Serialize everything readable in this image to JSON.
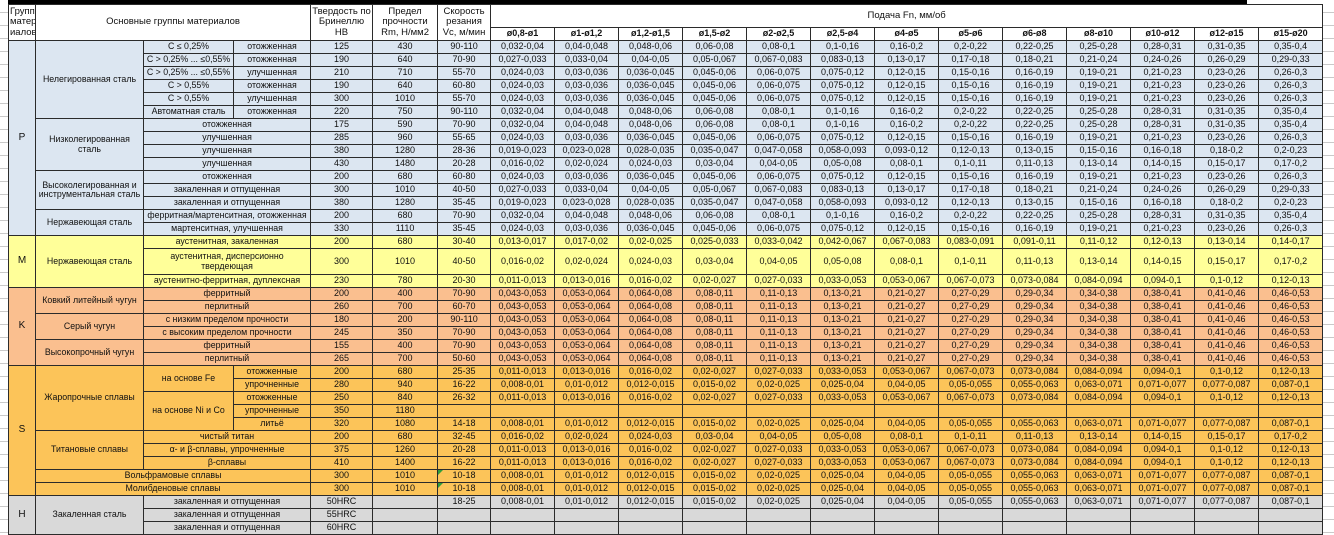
{
  "table": {
    "corner_header": "Группа матер иалов",
    "materials_header": "Основные группы материалов",
    "hardness_header": "Твердость по Бринеллю HB",
    "strength_header": "Предел прочности Rm, Н/мм2",
    "speed_header": "Скорость резания Vc, м/мин",
    "feed_header": "Подача Fn, мм/об",
    "diameter_columns": [
      "ø0,8-ø1",
      "ø1-ø1,2",
      "ø1,2-ø1,5",
      "ø1,5-ø2",
      "ø2-ø2,5",
      "ø2,5-ø4",
      "ø4-ø5",
      "ø5-ø6",
      "ø6-ø8",
      "ø8-ø10",
      "ø10-ø12",
      "ø12-ø15",
      "ø15-ø20"
    ],
    "group_colors": {
      "p": "#dce6f1",
      "m": "#ffff99",
      "k": "#fabf8f",
      "s": "#fcc459",
      "h": "#d9d9d9"
    },
    "error_indicator_color": "#2f9e3c",
    "feed_patterns": {
      "A": [
        "0,032-0,04",
        "0,04-0,048",
        "0,048-0,06",
        "0,06-0,08",
        "0,08-0,1",
        "0,1-0,16",
        "0,16-0,2",
        "0,2-0,22",
        "0,22-0,25",
        "0,25-0,28",
        "0,28-0,31",
        "0,31-0,35",
        "0,35-0,4"
      ],
      "B": [
        "0,027-0,033",
        "0,033-0,04",
        "0,04-0,05",
        "0,05-0,067",
        "0,067-0,083",
        "0,083-0,13",
        "0,13-0,17",
        "0,17-0,18",
        "0,18-0,21",
        "0,21-0,24",
        "0,24-0,26",
        "0,26-0,29",
        "0,29-0,33"
      ],
      "C": [
        "0,024-0,03",
        "0,03-0,036",
        "0,036-0,045",
        "0,045-0,06",
        "0,06-0,075",
        "0,075-0,12",
        "0,12-0,15",
        "0,15-0,16",
        "0,16-0,19",
        "0,19-0,21",
        "0,21-0,23",
        "0,23-0,26",
        "0,26-0,3"
      ],
      "D": [
        "0,019-0,023",
        "0,023-0,028",
        "0,028-0,035",
        "0,035-0,047",
        "0,047-0,058",
        "0,058-0,093",
        "0,093-0,12",
        "0,12-0,13",
        "0,13-0,15",
        "0,15-0,16",
        "0,16-0,18",
        "0,18-0,2",
        "0,2-0,23"
      ],
      "E": [
        "0,016-0,02",
        "0,02-0,024",
        "0,024-0,03",
        "0,03-0,04",
        "0,04-0,05",
        "0,05-0,08",
        "0,08-0,1",
        "0,1-0,11",
        "0,11-0,13",
        "0,13-0,14",
        "0,14-0,15",
        "0,15-0,17",
        "0,17-0,2"
      ],
      "F": [
        "0,013-0,017",
        "0,017-0,02",
        "0,02-0,025",
        "0,025-0,033",
        "0,033-0,042",
        "0,042-0,067",
        "0,067-0,083",
        "0,083-0,091",
        "0,091-0,11",
        "0,11-0,12",
        "0,12-0,13",
        "0,13-0,14",
        "0,14-0,17"
      ],
      "G": [
        "0,011-0,013",
        "0,013-0,016",
        "0,016-0,02",
        "0,02-0,027",
        "0,027-0,033",
        "0,033-0,053",
        "0,053-0,067",
        "0,067-0,073",
        "0,073-0,084",
        "0,084-0,094",
        "0,094-0,1",
        "0,1-0,12",
        "0,12-0,13"
      ],
      "H": [
        "0,043-0,053",
        "0,053-0,064",
        "0,064-0,08",
        "0,08-0,11",
        "0,11-0,13",
        "0,13-0,21",
        "0,21-0,27",
        "0,27-0,29",
        "0,29-0,34",
        "0,34-0,38",
        "0,38-0,41",
        "0,41-0,46",
        "0,46-0,53"
      ],
      "I": [
        "0,008-0,01",
        "0,01-0,012",
        "0,012-0,015",
        "0,015-0,02",
        "0,02-0,025",
        "0,025-0,04",
        "0,04-0,05",
        "0,05-0,055",
        "0,055-0,063",
        "0,063-0,071",
        "0,071-0,077",
        "0,077-0,087",
        "0,087-0,1"
      ]
    },
    "rows": [
      {
        "c": "p",
        "group": {
          "label": "P",
          "rowspan": 15
        },
        "material": {
          "label": "Нелегированная сталь",
          "rowspan": 6
        },
        "sub1": {
          "label": "C ≤ 0,25%"
        },
        "sub2": {
          "label": "отожженная"
        },
        "hb": "125",
        "rm": "430",
        "vc": "90-110",
        "feeds": "A"
      },
      {
        "c": "p",
        "sub1": {
          "label": "C > 0,25% ... ≤0,55%"
        },
        "sub2": {
          "label": "отожженная"
        },
        "hb": "190",
        "rm": "640",
        "vc": "70-90",
        "feeds": "B"
      },
      {
        "c": "p",
        "sub1": {
          "label": "C > 0,25% ... ≤0,55%"
        },
        "sub2": {
          "label": "улучшенная"
        },
        "hb": "210",
        "rm": "710",
        "vc": "55-70",
        "feeds": "C"
      },
      {
        "c": "p",
        "sub1": {
          "label": "C > 0,55%"
        },
        "sub2": {
          "label": "отожженная"
        },
        "hb": "190",
        "rm": "640",
        "vc": "60-80",
        "feeds": "C"
      },
      {
        "c": "p",
        "sub1": {
          "label": "C > 0,55%"
        },
        "sub2": {
          "label": "улучшенная"
        },
        "hb": "300",
        "rm": "1010",
        "vc": "55-70",
        "feeds": "C"
      },
      {
        "c": "p",
        "sub1": {
          "label": "Автоматная сталь"
        },
        "sub2": {
          "label": "отожженная"
        },
        "hb": "220",
        "rm": "750",
        "vc": "90-110",
        "feeds": "A"
      },
      {
        "c": "p",
        "material": {
          "label": "Низколегированная сталь",
          "rowspan": 4
        },
        "sub1": {
          "label": "отожженная",
          "colspan": 2
        },
        "hb": "175",
        "rm": "590",
        "vc": "70-90",
        "feeds": "A"
      },
      {
        "c": "p",
        "sub1": {
          "label": "улучшенная",
          "colspan": 2
        },
        "hb": "285",
        "rm": "960",
        "vc": "55-65",
        "feeds": "C"
      },
      {
        "c": "p",
        "sub1": {
          "label": "улучшенная",
          "colspan": 2
        },
        "hb": "380",
        "rm": "1280",
        "vc": "28-36",
        "feeds": "D"
      },
      {
        "c": "p",
        "sub1": {
          "label": "улучшенная",
          "colspan": 2
        },
        "hb": "430",
        "rm": "1480",
        "vc": "20-28",
        "feeds": "E"
      },
      {
        "c": "p",
        "material": {
          "label": "Высоколегированная и инструментальная сталь",
          "rowspan": 3
        },
        "sub1": {
          "label": "отожженная",
          "colspan": 2
        },
        "hb": "200",
        "rm": "680",
        "vc": "60-80",
        "feeds": "C"
      },
      {
        "c": "p",
        "sub1": {
          "label": "закаленная и отпущенная",
          "colspan": 2
        },
        "hb": "300",
        "rm": "1010",
        "vc": "40-50",
        "feeds": "B"
      },
      {
        "c": "p",
        "sub1": {
          "label": "закаленная и отпущенная",
          "colspan": 2
        },
        "hb": "380",
        "rm": "1280",
        "vc": "35-45",
        "feeds": "D"
      },
      {
        "c": "p",
        "material": {
          "label": "Нержавеющая сталь",
          "rowspan": 2
        },
        "sub1": {
          "label": "ферритная/мартенситная, отожженная",
          "colspan": 2
        },
        "hb": "200",
        "rm": "680",
        "vc": "70-90",
        "feeds": "A"
      },
      {
        "c": "p",
        "sub1": {
          "label": "мартенситная, улучшенная",
          "colspan": 2
        },
        "hb": "330",
        "rm": "1110",
        "vc": "35-45",
        "feeds": "C"
      },
      {
        "c": "m",
        "group": {
          "label": "M",
          "rowspan": 3
        },
        "material": {
          "label": "Нержавеющая сталь",
          "rowspan": 3
        },
        "sub1": {
          "label": "аустенитная, закаленная",
          "colspan": 2
        },
        "hb": "200",
        "rm": "680",
        "vc": "30-40",
        "feeds": "F"
      },
      {
        "c": "m",
        "tall": true,
        "sub1": {
          "label": "аустенитная, дисперсионно твердеющая",
          "colspan": 2
        },
        "hb": "300",
        "rm": "1010",
        "vc": "40-50",
        "feeds": "E"
      },
      {
        "c": "m",
        "sub1": {
          "label": "аустенитно-ферритная, дуплексная",
          "colspan": 2
        },
        "hb": "230",
        "rm": "780",
        "vc": "20-30",
        "feeds": "G"
      },
      {
        "c": "k",
        "group": {
          "label": "K",
          "rowspan": 6
        },
        "material": {
          "label": "Ковкий литейный чугун",
          "rowspan": 2
        },
        "sub1": {
          "label": "ферритный",
          "colspan": 2
        },
        "hb": "200",
        "rm": "400",
        "vc": "70-90",
        "feeds": "H"
      },
      {
        "c": "k",
        "sub1": {
          "label": "перлитный",
          "colspan": 2
        },
        "hb": "260",
        "rm": "700",
        "vc": "60-70",
        "feeds": "H"
      },
      {
        "c": "k",
        "material": {
          "label": "Серый чугун",
          "rowspan": 2
        },
        "sub1": {
          "label": "с низким пределом прочности",
          "colspan": 2
        },
        "hb": "180",
        "rm": "200",
        "vc": "90-110",
        "feeds": "H"
      },
      {
        "c": "k",
        "sub1": {
          "label": "с высоким пределом прочности",
          "colspan": 2
        },
        "hb": "245",
        "rm": "350",
        "vc": "70-90",
        "feeds": "H"
      },
      {
        "c": "k",
        "material": {
          "label": "Высокопрочный чугун",
          "rowspan": 2
        },
        "sub1": {
          "label": "ферритный",
          "colspan": 2
        },
        "hb": "155",
        "rm": "400",
        "vc": "70-90",
        "feeds": "H"
      },
      {
        "c": "k",
        "sub1": {
          "label": "перлитный",
          "colspan": 2
        },
        "hb": "265",
        "rm": "700",
        "vc": "50-60",
        "feeds": "H"
      },
      {
        "c": "s",
        "group": {
          "label": "S",
          "rowspan": 10
        },
        "material": {
          "label": "Жаропрочные сплавы",
          "rowspan": 5
        },
        "sub1": {
          "label": "на основе Fe",
          "rowspan": 2
        },
        "sub2": {
          "label": "отожженные"
        },
        "hb": "200",
        "rm": "680",
        "vc": "25-35",
        "feeds": "G"
      },
      {
        "c": "s",
        "sub2": {
          "label": "упрочненные"
        },
        "hb": "280",
        "rm": "940",
        "vc": "16-22",
        "feeds": "I"
      },
      {
        "c": "s",
        "sub1": {
          "label": "на основе Ni и Co",
          "rowspan": 3
        },
        "sub2": {
          "label": "отожженные"
        },
        "hb": "250",
        "rm": "840",
        "vc": "26-32",
        "feeds": "G"
      },
      {
        "c": "s",
        "sub2": {
          "label": "упрочненные"
        },
        "hb": "350",
        "rm": "1180",
        "vc": "",
        "feeds": ""
      },
      {
        "c": "s",
        "sub2": {
          "label": "литьё"
        },
        "hb": "320",
        "rm": "1080",
        "vc": "14-18",
        "feeds": "I"
      },
      {
        "c": "s",
        "material": {
          "label": "Титановые сплавы",
          "rowspan": 3
        },
        "sub1": {
          "label": "чистый титан",
          "colspan": 2
        },
        "hb": "200",
        "rm": "680",
        "vc": "32-45",
        "feeds": "E"
      },
      {
        "c": "s",
        "sub1": {
          "label": "α- и β-сплавы, упрочненные",
          "colspan": 2
        },
        "hb": "375",
        "rm": "1260",
        "vc": "20-28",
        "feeds": "G"
      },
      {
        "c": "s",
        "sub1": {
          "label": "β-сплавы",
          "colspan": 2
        },
        "hb": "410",
        "rm": "1400",
        "vc": "16-22",
        "feeds": "G"
      },
      {
        "c": "s",
        "material": {
          "label": "Вольфрамовые сплавы",
          "colspan": 3
        },
        "hb": "300",
        "rm": "1010",
        "vc": "10-18",
        "vc_flag": true,
        "feeds": "I"
      },
      {
        "c": "s",
        "material": {
          "label": "Молибденовые сплавы",
          "colspan": 3
        },
        "hb": "300",
        "rm": "1010",
        "vc": "10-18",
        "vc_flag": true,
        "feeds": "I"
      },
      {
        "c": "h",
        "group": {
          "label": "H",
          "rowspan": 3
        },
        "material": {
          "label": "Закаленная сталь",
          "rowspan": 3
        },
        "sub1": {
          "label": "закаленная и отпущенная",
          "colspan": 2
        },
        "hb": "50HRC",
        "rm": "",
        "vc": "18-25",
        "feeds": "I"
      },
      {
        "c": "h",
        "sub1": {
          "label": "закаленная и отпущенная",
          "colspan": 2
        },
        "hb": "55HRC",
        "rm": "",
        "vc": "",
        "feeds": ""
      },
      {
        "c": "h",
        "sub1": {
          "label": "закаленная и отпущенная",
          "colspan": 2
        },
        "hb": "60HRC",
        "rm": "",
        "vc": "",
        "feeds": ""
      }
    ]
  }
}
